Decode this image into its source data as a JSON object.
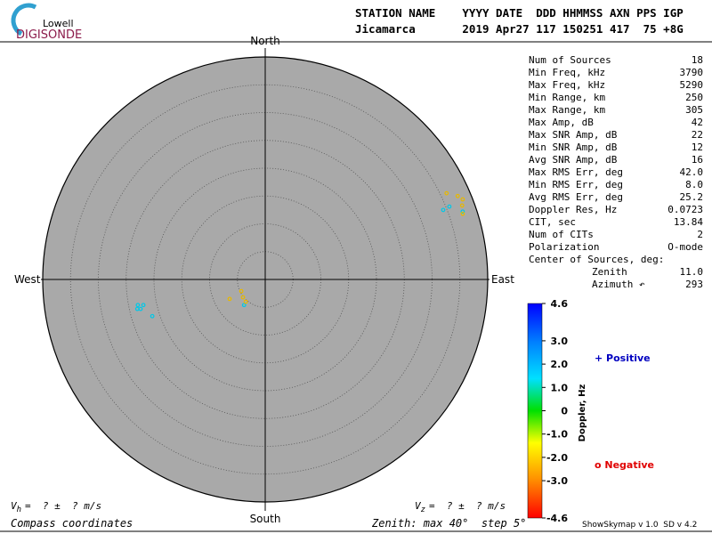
{
  "logo": {
    "top": "Lowell",
    "bottom": "DIGISONDE"
  },
  "header": {
    "line1": "STATION NAME    YYYY DATE  DDD HHMMSS AXN PPS IGP",
    "line2": "Jicamarca       2019 Apr27 117 150251 417  75 +8G"
  },
  "stats": [
    [
      "Num of Sources",
      "18"
    ],
    [
      "Min Freq, kHz",
      "3790"
    ],
    [
      "Max Freq, kHz",
      "5290"
    ],
    [
      "Min Range, km",
      "250"
    ],
    [
      "Max Range, km",
      "305"
    ],
    [
      "Max Amp, dB",
      "42"
    ],
    [
      "Max SNR Amp, dB",
      "22"
    ],
    [
      "Min SNR Amp, dB",
      "12"
    ],
    [
      "Avg SNR Amp, dB",
      "16"
    ],
    [
      "Max RMS Err, deg",
      "42.0"
    ],
    [
      "Min RMS Err, deg",
      "8.0"
    ],
    [
      "Avg RMS Err, deg",
      "25.2"
    ],
    [
      "Doppler Res, Hz",
      "0.0723"
    ],
    [
      "CIT, sec",
      "13.84"
    ],
    [
      "Num of CITs",
      "2"
    ],
    [
      "Polarization",
      "O-mode"
    ]
  ],
  "center": {
    "title": "Center of Sources, deg:",
    "zenith_label": "Zenith",
    "zenith": "11.0",
    "azimuth_label": "Azimuth ↶",
    "azimuth": "293"
  },
  "footer": {
    "vh_v": "V",
    "vh_sub": "h",
    "vh_rest": "=  ? ±  ? m/s",
    "vz_v": "V",
    "vz_sub": "z",
    "vz_rest": "=  ? ±  ? m/s",
    "coords": "Compass coordinates",
    "zenith": "Zenith: max 40°  step 5°",
    "version": "ShowSkymap v 1.0  SD v 4.2"
  },
  "chart_data": {
    "type": "skymap",
    "directions": {
      "north": "North",
      "south": "South",
      "east": "East",
      "west": "West"
    },
    "rlim": [
      0,
      40
    ],
    "rticks": [
      5,
      10,
      15,
      20,
      25,
      30,
      35,
      40
    ],
    "series": [
      {
        "name": "+ Positive",
        "color": "#00c8e8",
        "x": [
          32.0,
          33.1,
          35.5,
          -22.9,
          -22.4,
          -21.9,
          -20.3,
          -3.8,
          -23.0
        ],
        "y": [
          12.5,
          13.1,
          12.2,
          -4.6,
          -5.3,
          -4.6,
          -6.6,
          -4.6,
          -5.3
        ]
      },
      {
        "name": "o Negative",
        "color": "#e8b800",
        "x": [
          32.6,
          34.6,
          35.5,
          35.4,
          35.5,
          -4.3,
          -6.4,
          -3.5,
          -4.0
        ],
        "y": [
          15.5,
          15.0,
          14.4,
          13.3,
          11.8,
          -2.1,
          -3.5,
          -4.0,
          -3.2
        ]
      }
    ],
    "legend_colors": [
      "#0000c0",
      "#e00000"
    ],
    "colorbar": {
      "label": "Doppler, Hz",
      "lim": [
        -4.6,
        4.6
      ],
      "ticks": [
        4.6,
        {
          "value": 3,
          "label": "3.0"
        },
        {
          "value": 2,
          "label": "2.0"
        },
        {
          "value": 1,
          "label": "1.0"
        },
        0,
        {
          "value": -1,
          "label": "-1.0"
        },
        {
          "value": -2,
          "label": "-2.0"
        },
        {
          "value": -3,
          "label": "-3.0"
        },
        -4.6
      ]
    }
  }
}
